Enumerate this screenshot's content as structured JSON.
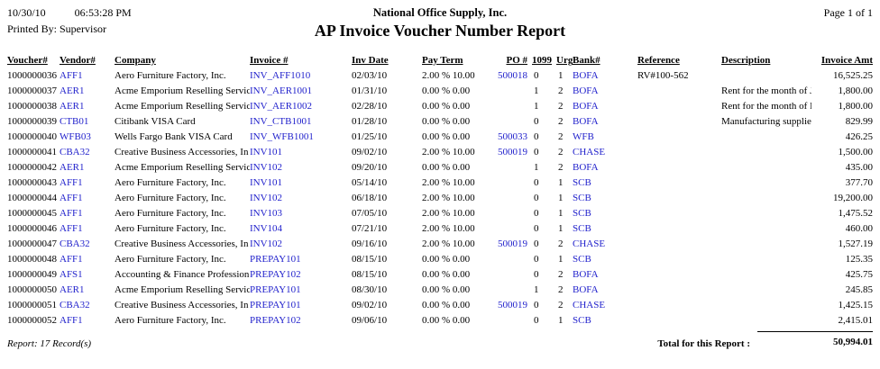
{
  "header": {
    "date": "10/30/10",
    "time": "06:53:28 PM",
    "printed_by": "Printed By: Supervisor",
    "company": "National Office Supply, Inc.",
    "title": "AP Invoice Voucher Number Report",
    "page": "Page 1 of 1"
  },
  "table": {
    "columns": [
      "Voucher#",
      "Vendor#",
      "Company",
      "Invoice #",
      "Inv Date",
      "Pay Term",
      "PO #",
      "1099",
      "Urg",
      "Bank#",
      "Reference",
      "Description",
      "Invoice Amt"
    ],
    "column_keys": [
      "voucher",
      "vendor",
      "company",
      "invoice",
      "inv-date",
      "pay-term",
      "po",
      "1099",
      "urg",
      "bank",
      "reference",
      "description",
      "amount"
    ],
    "link_columns": [
      1,
      3,
      6,
      9
    ],
    "rows": [
      [
        "1000000036",
        "AFF1",
        "Aero Furniture Factory, Inc.",
        "INV_AFF1010",
        "02/03/10",
        "2.00 % 10.00",
        "500018",
        "0",
        "1",
        "BOFA",
        "RV#100-562",
        "",
        "16,525.25"
      ],
      [
        "1000000037",
        "AER1",
        "Acme Emporium Reselling Servic",
        "INV_AER1001",
        "01/31/10",
        "0.00 % 0.00",
        "",
        "1",
        "2",
        "BOFA",
        "",
        "Rent for the month of Ja",
        "1,800.00"
      ],
      [
        "1000000038",
        "AER1",
        "Acme Emporium Reselling Servic",
        "INV_AER1002",
        "02/28/10",
        "0.00 % 0.00",
        "",
        "1",
        "2",
        "BOFA",
        "",
        "Rent for the month of F",
        "1,800.00"
      ],
      [
        "1000000039",
        "CTB01",
        "Citibank VISA Card",
        "INV_CTB1001",
        "01/28/10",
        "0.00 % 0.00",
        "",
        "0",
        "2",
        "BOFA",
        "",
        "Manufacturing supplies",
        "829.99"
      ],
      [
        "1000000040",
        "WFB03",
        "Wells Fargo Bank VISA Card",
        "INV_WFB1001",
        "01/25/10",
        "0.00 % 0.00",
        "500033",
        "0",
        "2",
        "WFB",
        "",
        "",
        "426.25"
      ],
      [
        "1000000041",
        "CBA32",
        "Creative Business Accessories, In",
        "INV101",
        "09/02/10",
        "2.00 % 10.00",
        "500019",
        "0",
        "2",
        "CHASE",
        "",
        "",
        "1,500.00"
      ],
      [
        "1000000042",
        "AER1",
        "Acme Emporium Reselling Servic",
        "INV102",
        "09/20/10",
        "0.00 % 0.00",
        "",
        "1",
        "2",
        "BOFA",
        "",
        "",
        "435.00"
      ],
      [
        "1000000043",
        "AFF1",
        "Aero Furniture Factory, Inc.",
        "INV101",
        "05/14/10",
        "2.00 % 10.00",
        "",
        "0",
        "1",
        "SCB",
        "",
        "",
        "377.70"
      ],
      [
        "1000000044",
        "AFF1",
        "Aero Furniture Factory, Inc.",
        "INV102",
        "06/18/10",
        "2.00 % 10.00",
        "",
        "0",
        "1",
        "SCB",
        "",
        "",
        "19,200.00"
      ],
      [
        "1000000045",
        "AFF1",
        "Aero Furniture Factory, Inc.",
        "INV103",
        "07/05/10",
        "2.00 % 10.00",
        "",
        "0",
        "1",
        "SCB",
        "",
        "",
        "1,475.52"
      ],
      [
        "1000000046",
        "AFF1",
        "Aero Furniture Factory, Inc.",
        "INV104",
        "07/21/10",
        "2.00 % 10.00",
        "",
        "0",
        "1",
        "SCB",
        "",
        "",
        "460.00"
      ],
      [
        "1000000047",
        "CBA32",
        "Creative Business Accessories, In",
        "INV102",
        "09/16/10",
        "2.00 % 10.00",
        "500019",
        "0",
        "2",
        "CHASE",
        "",
        "",
        "1,527.19"
      ],
      [
        "1000000048",
        "AFF1",
        "Aero Furniture Factory, Inc.",
        "PREPAY101",
        "08/15/10",
        "0.00 % 0.00",
        "",
        "0",
        "1",
        "SCB",
        "",
        "",
        "125.35"
      ],
      [
        "1000000049",
        "AFS1",
        "Accounting & Finance Profession",
        "PREPAY102",
        "08/15/10",
        "0.00 % 0.00",
        "",
        "0",
        "2",
        "BOFA",
        "",
        "",
        "425.75"
      ],
      [
        "1000000050",
        "AER1",
        "Acme Emporium Reselling Servic",
        "PREPAY101",
        "08/30/10",
        "0.00 % 0.00",
        "",
        "1",
        "2",
        "BOFA",
        "",
        "",
        "245.85"
      ],
      [
        "1000000051",
        "CBA32",
        "Creative Business Accessories, In",
        "PREPAY101",
        "09/02/10",
        "0.00 % 0.00",
        "500019",
        "0",
        "2",
        "CHASE",
        "",
        "",
        "1,425.15"
      ],
      [
        "1000000052",
        "AFF1",
        "Aero Furniture Factory, Inc.",
        "PREPAY102",
        "09/06/10",
        "0.00 % 0.00",
        "",
        "0",
        "1",
        "SCB",
        "",
        "",
        "2,415.01"
      ]
    ]
  },
  "footer": {
    "record_count": "Report: 17 Record(s)",
    "total_label": "Total for this Report :",
    "total_amount": "50,994.01"
  },
  "colors": {
    "link_blue": "#2222CC",
    "text": "#000000",
    "background": "#FFFFFF"
  }
}
